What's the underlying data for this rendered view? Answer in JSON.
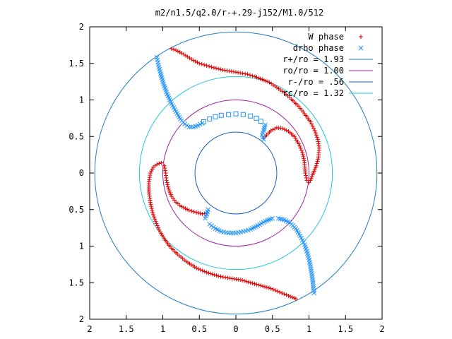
{
  "chart_data": {
    "type": "scatter",
    "title": "m2/n1.5/q2.0/r-+.29-j152/M1.0/512",
    "xlabel": "",
    "ylabel": "",
    "xlim": [
      -2,
      2
    ],
    "ylim": [
      -2,
      2
    ],
    "grid": false,
    "legend_position": "top-right",
    "x_tick_labels": [
      "2",
      "1.5",
      "1",
      "0.5",
      "0",
      "0.5",
      "1",
      "1.5",
      "2"
    ],
    "x_tick_values": [
      -2,
      -1.5,
      -1,
      -0.5,
      0,
      0.5,
      1,
      1.5,
      2
    ],
    "y_tick_labels": [
      "2",
      "1.5",
      "1",
      "0.5",
      "0",
      "0.5",
      "1",
      "1.5",
      "2"
    ],
    "y_tick_values": [
      2,
      1.5,
      1,
      0.5,
      0,
      -0.5,
      -1,
      -1.5,
      -2
    ],
    "circles": [
      {
        "name": "r+/ro = 1.93",
        "r": 1.93,
        "color": "#1f7fbf"
      },
      {
        "name": "ro/ro = 1.00",
        "r": 1.0,
        "color": "#a020a0"
      },
      {
        "name": "r-/ro = .56",
        "r": 0.56,
        "color": "#1f5fbf"
      },
      {
        "name": "rc/ro = 1.32",
        "r": 1.32,
        "color": "#22c8d8"
      }
    ],
    "series": [
      {
        "name": "W phase",
        "marker": "plus",
        "color": "#e00000",
        "points": [
          [
            -0.88,
            1.7
          ],
          [
            -0.82,
            1.68
          ],
          [
            -0.74,
            1.64
          ],
          [
            -0.66,
            1.59
          ],
          [
            -0.58,
            1.54
          ],
          [
            -0.5,
            1.5
          ],
          [
            -0.4,
            1.47
          ],
          [
            -0.3,
            1.44
          ],
          [
            -0.18,
            1.41
          ],
          [
            -0.06,
            1.39
          ],
          [
            0.06,
            1.37
          ],
          [
            0.16,
            1.35
          ],
          [
            0.26,
            1.32
          ],
          [
            0.36,
            1.28
          ],
          [
            0.46,
            1.24
          ],
          [
            0.56,
            1.17
          ],
          [
            0.66,
            1.1
          ],
          [
            0.76,
            1.01
          ],
          [
            0.86,
            0.91
          ],
          [
            0.94,
            0.81
          ],
          [
            1.02,
            0.7
          ],
          [
            1.08,
            0.58
          ],
          [
            1.12,
            0.46
          ],
          [
            1.14,
            0.34
          ],
          [
            1.13,
            0.22
          ],
          [
            1.1,
            0.1
          ],
          [
            1.06,
            0.0
          ],
          [
            1.02,
            -0.1
          ],
          [
            1.0,
            -0.13
          ],
          [
            0.97,
            -0.1
          ],
          [
            0.95,
            0.0
          ],
          [
            0.94,
            0.14
          ],
          [
            0.91,
            0.28
          ],
          [
            0.86,
            0.4
          ],
          [
            0.8,
            0.5
          ],
          [
            0.72,
            0.57
          ],
          [
            0.64,
            0.61
          ],
          [
            0.56,
            0.62
          ],
          [
            0.48,
            0.58
          ],
          [
            0.42,
            0.52
          ],
          [
            0.38,
            0.48
          ],
          [
            -1.02,
            0.14
          ],
          [
            -1.08,
            0.12
          ],
          [
            -1.13,
            0.08
          ],
          [
            -1.17,
            0.0
          ],
          [
            -1.19,
            -0.12
          ],
          [
            -1.19,
            -0.26
          ],
          [
            -1.17,
            -0.4
          ],
          [
            -1.14,
            -0.54
          ],
          [
            -1.1,
            -0.66
          ],
          [
            -1.05,
            -0.78
          ],
          [
            -0.98,
            -0.9
          ],
          [
            -0.9,
            -1.01
          ],
          [
            -0.8,
            -1.11
          ],
          [
            -0.68,
            -1.21
          ],
          [
            -0.54,
            -1.3
          ],
          [
            -0.4,
            -1.36
          ],
          [
            -0.24,
            -1.41
          ],
          [
            -0.08,
            -1.44
          ],
          [
            0.06,
            -1.46
          ],
          [
            0.2,
            -1.5
          ],
          [
            0.34,
            -1.54
          ],
          [
            0.48,
            -1.58
          ],
          [
            0.6,
            -1.63
          ],
          [
            0.72,
            -1.68
          ],
          [
            0.82,
            -1.72
          ],
          [
            -0.98,
            0.1
          ],
          [
            -0.96,
            0.0
          ],
          [
            -0.95,
            -0.1
          ],
          [
            -0.92,
            -0.22
          ],
          [
            -0.88,
            -0.32
          ],
          [
            -0.82,
            -0.4
          ],
          [
            -0.74,
            -0.46
          ],
          [
            -0.64,
            -0.51
          ],
          [
            -0.54,
            -0.54
          ],
          [
            -0.46,
            -0.56
          ],
          [
            -0.4,
            -0.55
          ]
        ]
      },
      {
        "name": "drho phase",
        "marker": "cross",
        "color": "#1e90ff",
        "points": [
          [
            -1.08,
            1.58
          ],
          [
            -1.06,
            1.48
          ],
          [
            -1.03,
            1.36
          ],
          [
            -0.99,
            1.22
          ],
          [
            -0.94,
            1.08
          ],
          [
            -0.88,
            0.95
          ],
          [
            -0.82,
            0.84
          ],
          [
            -0.76,
            0.74
          ],
          [
            -0.7,
            0.67
          ],
          [
            -0.64,
            0.63
          ],
          [
            -0.58,
            0.63
          ],
          [
            -0.52,
            0.65
          ],
          [
            -0.46,
            0.68
          ],
          [
            0.4,
            0.66
          ],
          [
            0.38,
            0.58
          ],
          [
            0.36,
            0.52
          ],
          [
            0.38,
            0.46
          ],
          [
            -0.4,
            -0.56
          ],
          [
            -0.38,
            -0.5
          ],
          [
            -0.42,
            -0.62
          ],
          [
            0.58,
            -0.62
          ],
          [
            0.66,
            -0.64
          ],
          [
            0.74,
            -0.68
          ],
          [
            0.82,
            -0.76
          ],
          [
            0.88,
            -0.86
          ],
          [
            0.94,
            -0.98
          ],
          [
            0.98,
            -1.1
          ],
          [
            1.01,
            -1.22
          ],
          [
            1.03,
            -1.34
          ],
          [
            1.05,
            -1.46
          ],
          [
            1.06,
            -1.58
          ],
          [
            1.07,
            -1.64
          ],
          [
            -0.36,
            -0.7
          ],
          [
            -0.28,
            -0.76
          ],
          [
            -0.2,
            -0.8
          ],
          [
            -0.1,
            -0.82
          ],
          [
            0.0,
            -0.82
          ],
          [
            0.1,
            -0.8
          ],
          [
            0.2,
            -0.77
          ],
          [
            0.3,
            -0.72
          ],
          [
            0.4,
            -0.66
          ],
          [
            0.5,
            -0.62
          ]
        ]
      },
      {
        "name": "",
        "marker": "square",
        "color": "#1e90ff",
        "points": [
          [
            -0.44,
            0.7
          ],
          [
            -0.36,
            0.74
          ],
          [
            -0.28,
            0.77
          ],
          [
            -0.2,
            0.79
          ],
          [
            -0.1,
            0.8
          ],
          [
            0.0,
            0.81
          ],
          [
            0.1,
            0.8
          ],
          [
            0.2,
            0.78
          ],
          [
            0.28,
            0.75
          ],
          [
            0.34,
            0.71
          ]
        ]
      }
    ],
    "legend": [
      {
        "label": "W phase",
        "sample": "plus",
        "color": "#e00000"
      },
      {
        "label": "drho phase",
        "sample": "cross",
        "color": "#1e90ff"
      },
      {
        "label": "r+/ro = 1.93",
        "sample": "line",
        "color": "#1f7fbf"
      },
      {
        "label": "ro/ro = 1.00",
        "sample": "line",
        "color": "#a020a0"
      },
      {
        "label": "r-/ro = .56",
        "sample": "line",
        "color": "#1f5fbf"
      },
      {
        "label": "rc/ro = 1.32",
        "sample": "line",
        "color": "#22c8d8"
      }
    ]
  }
}
